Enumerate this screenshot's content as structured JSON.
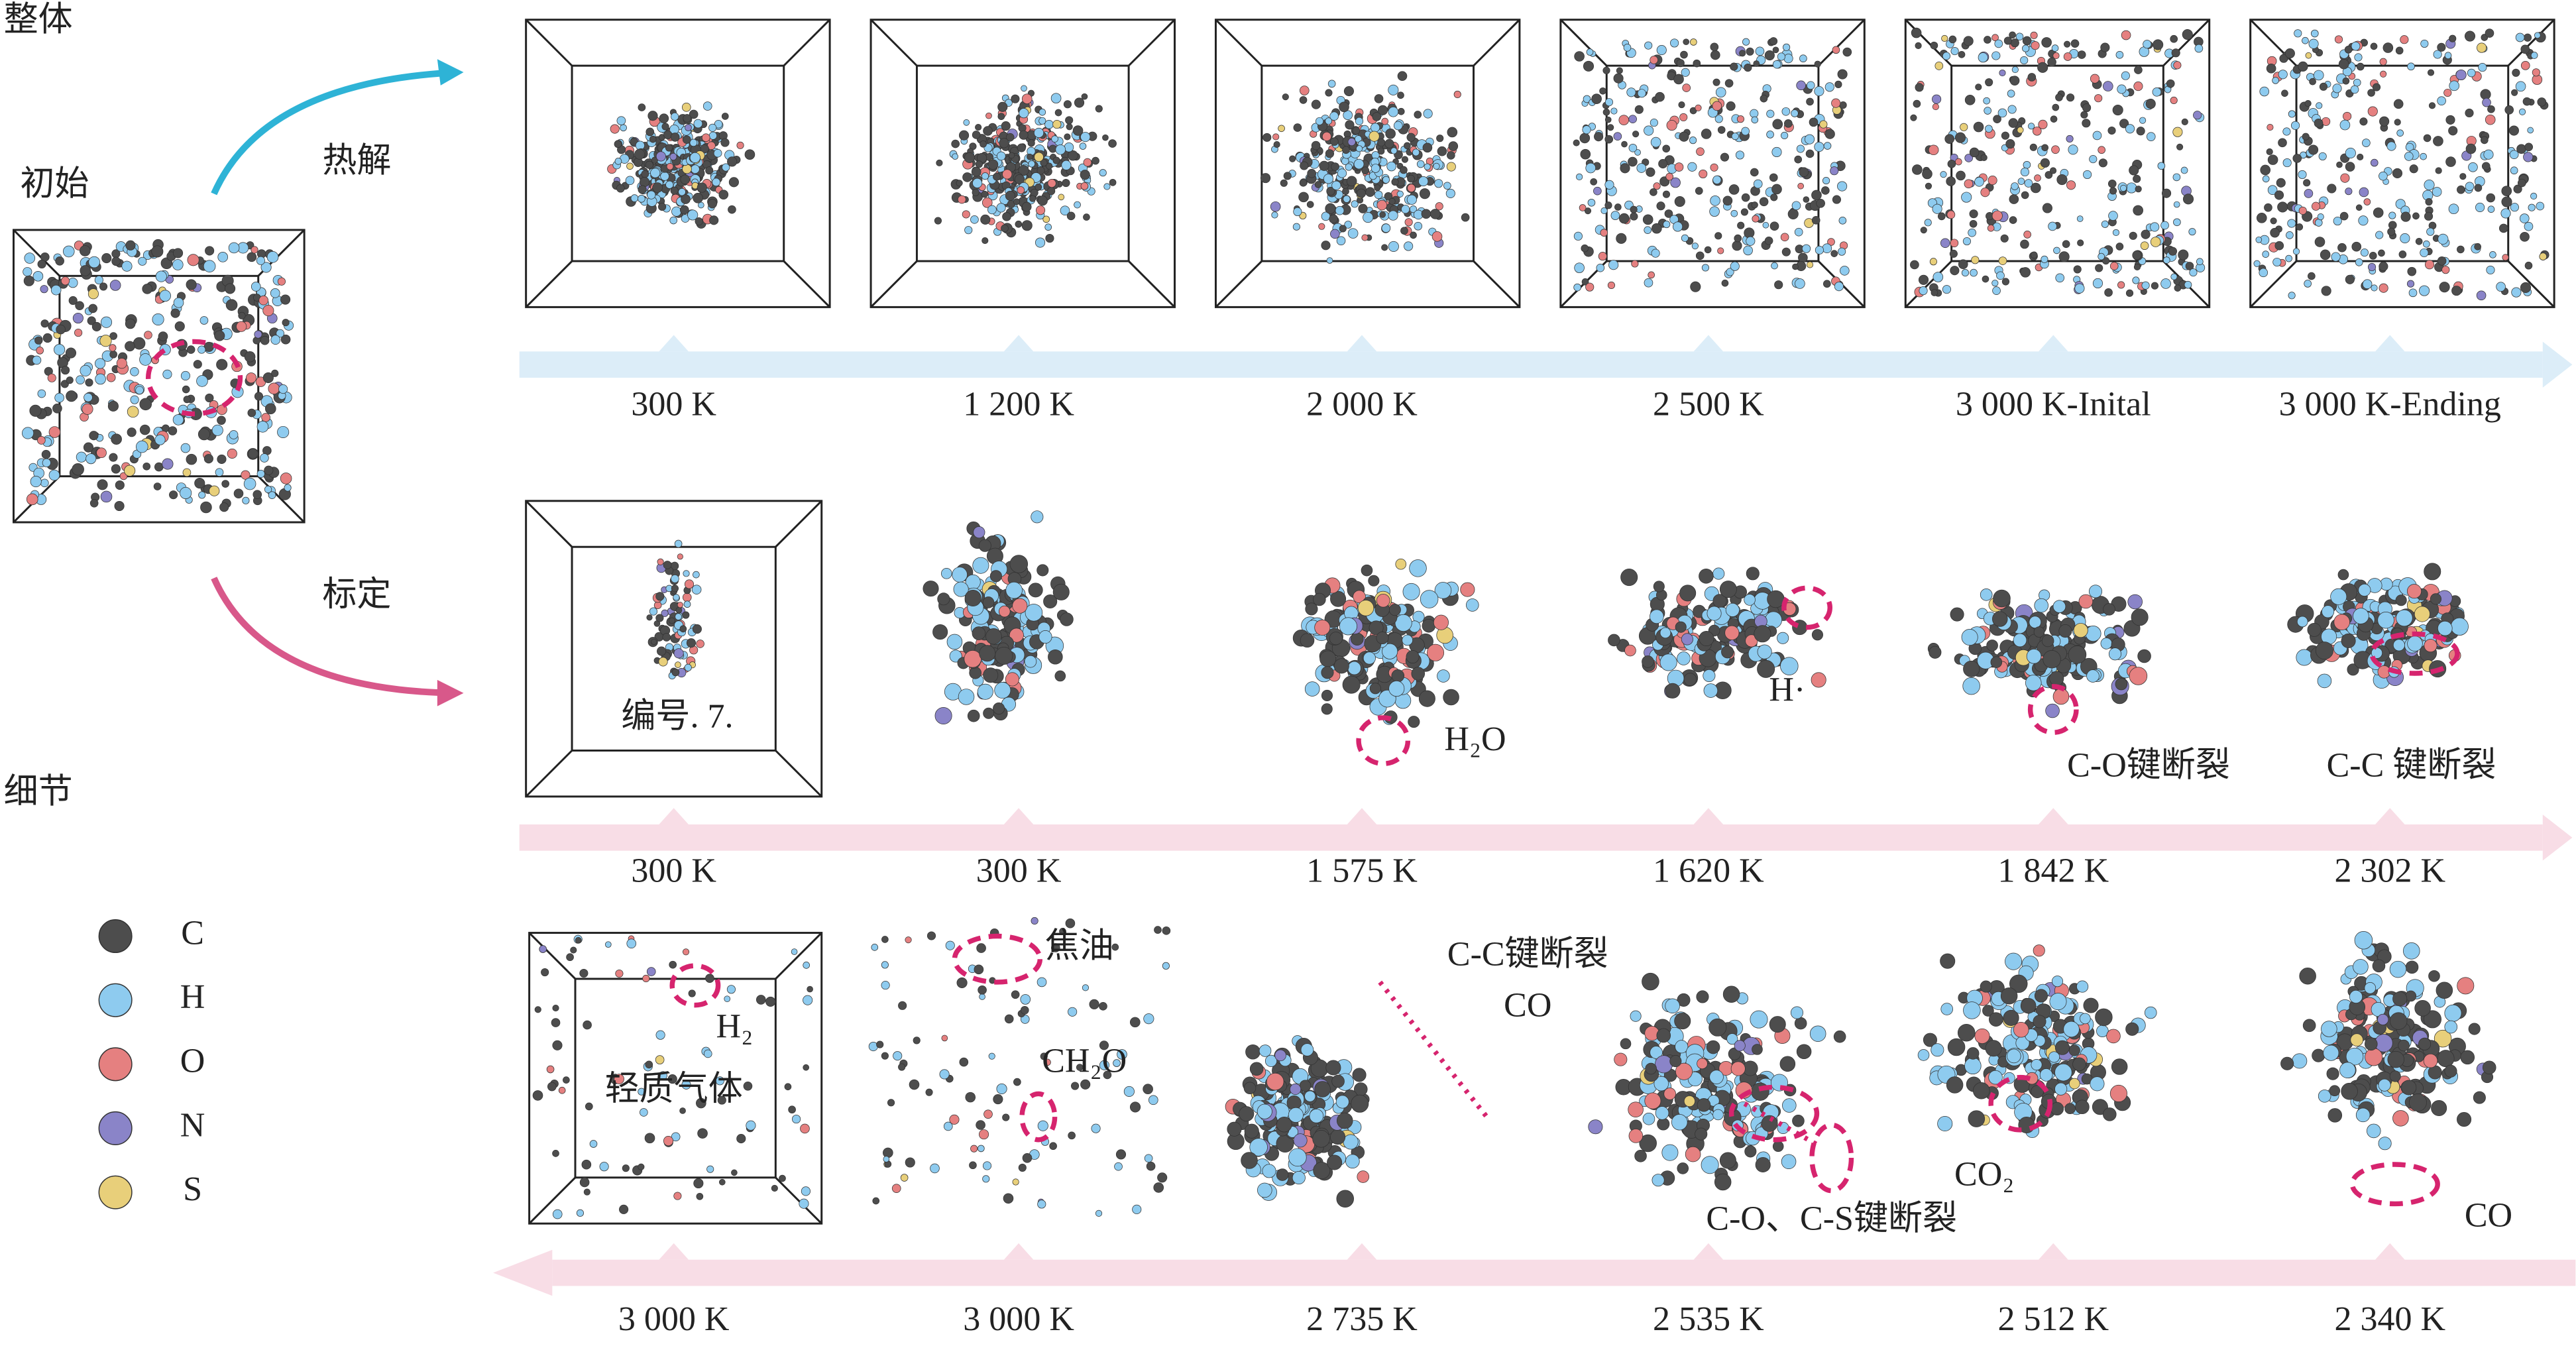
{
  "labels": {
    "overall": "整体",
    "initial": "初始",
    "pyrolysis": "热解",
    "calibration": "标定",
    "detail": "细节"
  },
  "rows": [
    {
      "temperatures": [
        "300 K",
        "1 200 K",
        "2 000 K",
        "2 500 K",
        "3 000 K-Inital",
        "3 000 K-Ending"
      ]
    },
    {
      "temperatures": [
        "300 K",
        "300 K",
        "1 575 K",
        "1 620 K",
        "1 842 K",
        "2 302 K"
      ],
      "annotations": [
        "编号. 7.",
        "H₂O",
        "H·",
        "C-O键断裂",
        "C-C 键断裂"
      ]
    },
    {
      "temperatures": [
        "3 000 K",
        "3 000 K",
        "2 735 K",
        "2 535 K",
        "2 512 K",
        "2 340 K"
      ],
      "annotations": [
        "H₂",
        "轻质气体",
        "焦油",
        "CH₂O",
        "C-C键断裂",
        "CO",
        "C-O、C-S键断裂",
        "CO₂",
        "CO"
      ]
    }
  ],
  "legend": [
    {
      "label": "C",
      "color": "#4d4d4d"
    },
    {
      "label": "H",
      "color": "#8ecbef"
    },
    {
      "label": "O",
      "color": "#e58080"
    },
    {
      "label": "N",
      "color": "#8a84c8"
    },
    {
      "label": "S",
      "color": "#e8cf7a"
    }
  ]
}
